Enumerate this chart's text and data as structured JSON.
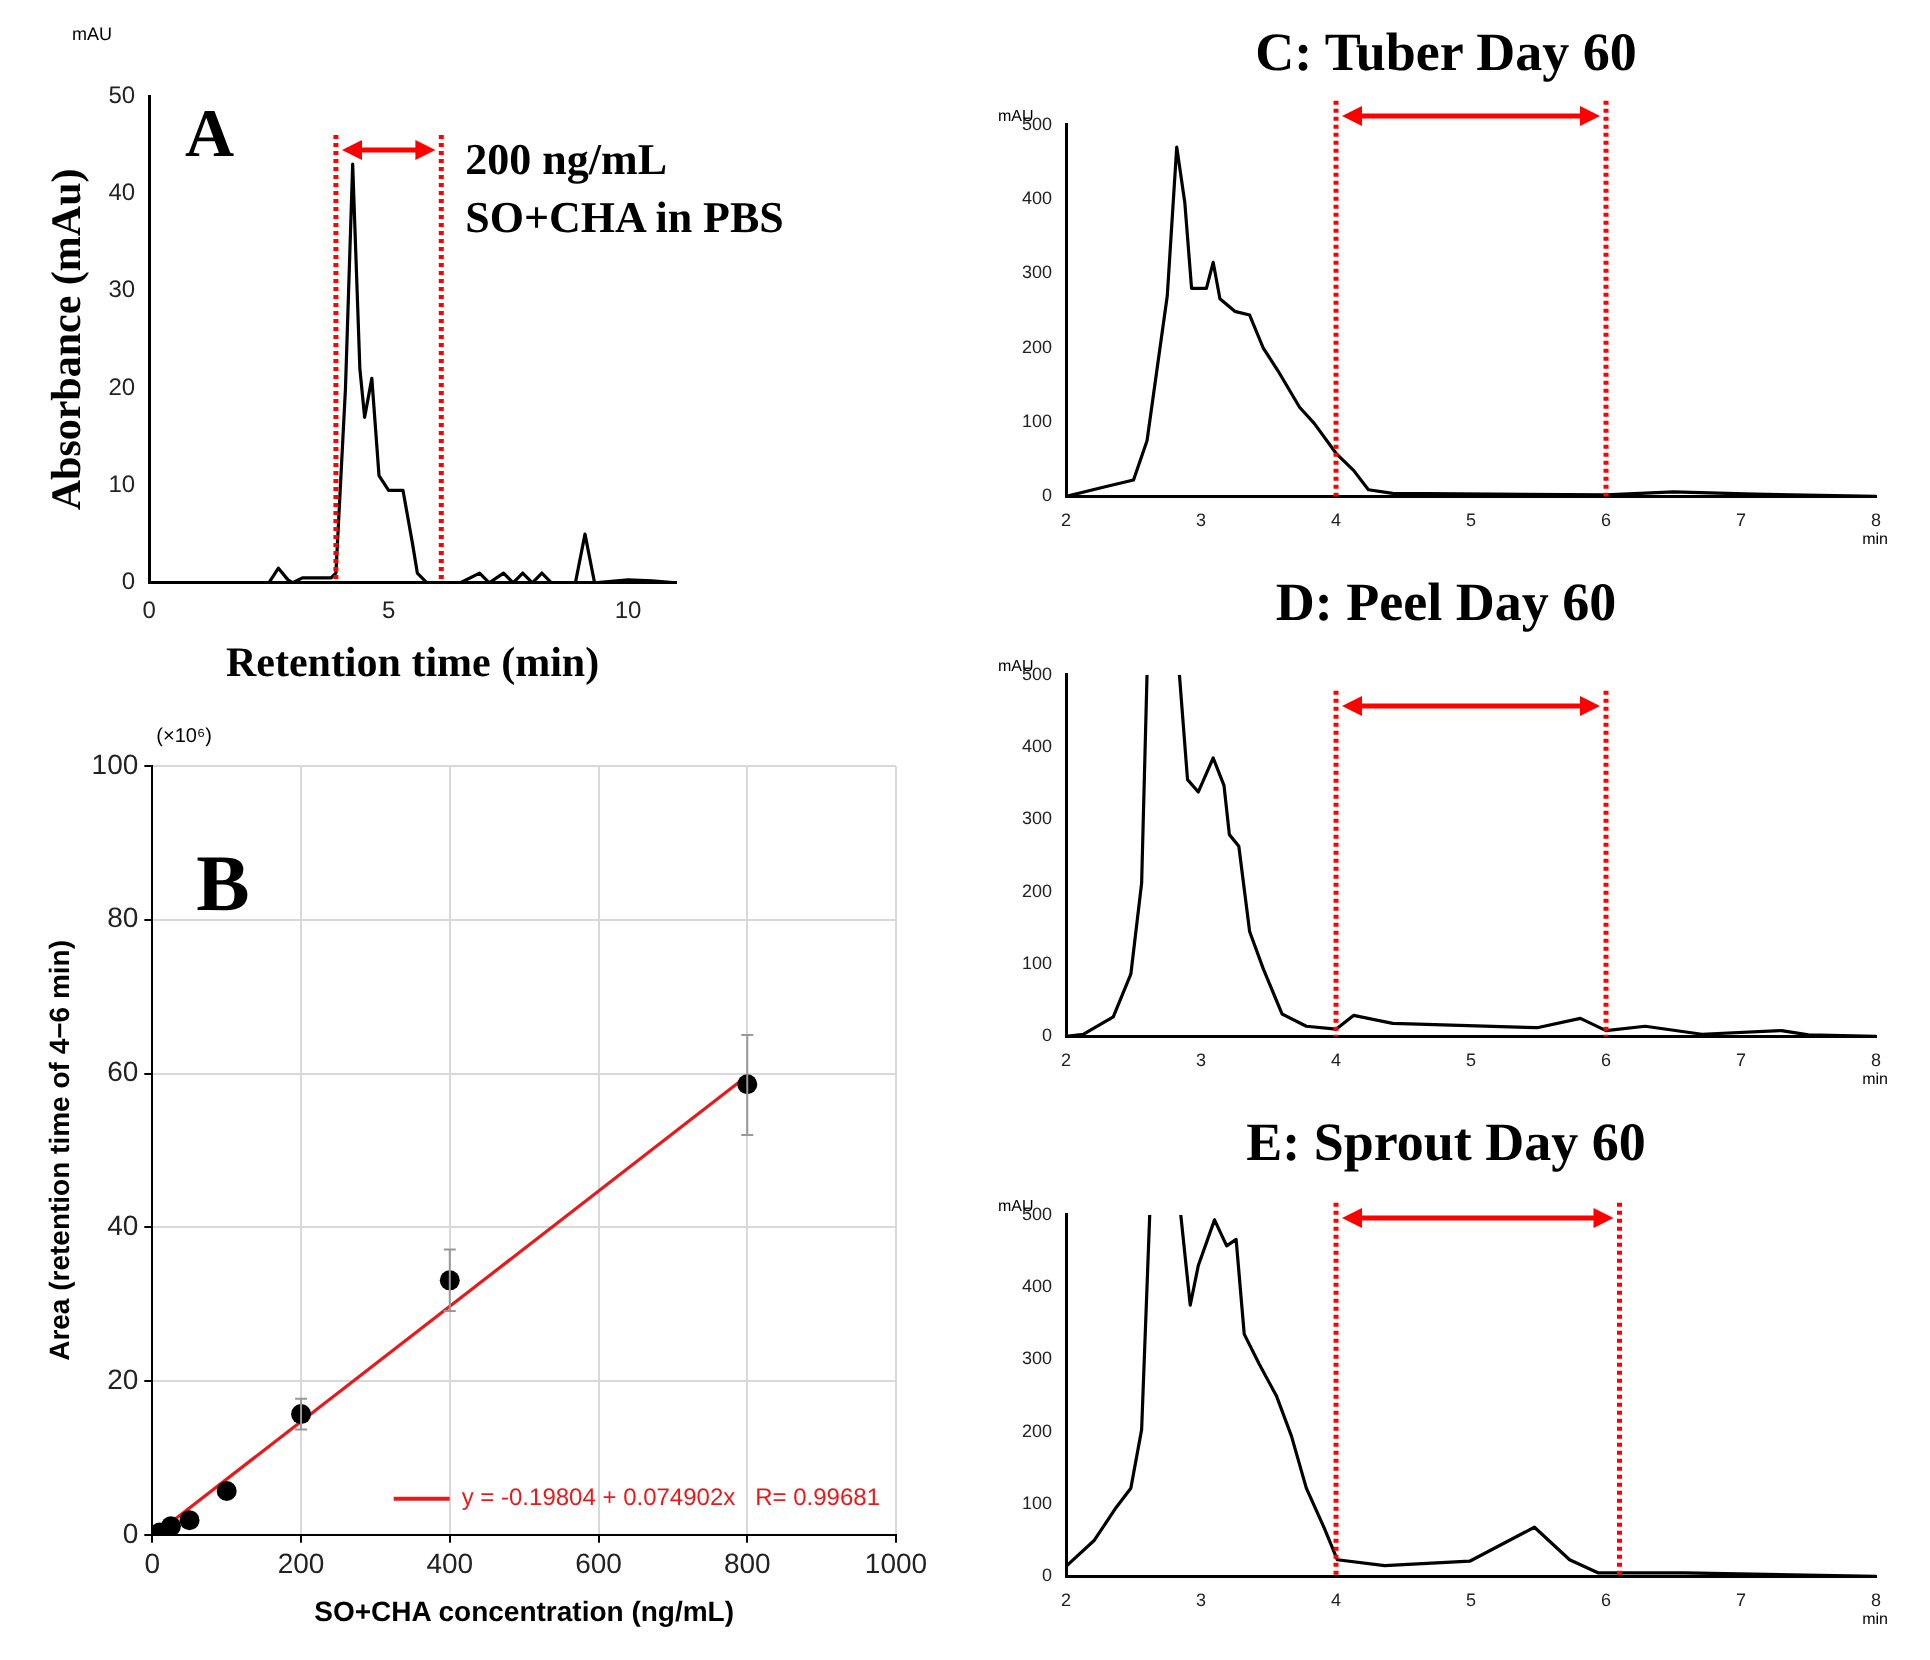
{
  "chart_data": [
    {
      "type": "line",
      "xlabel": "Retention time (min)",
      "ylabel": "Absorbance (mAu)",
      "annotations": [
        "A",
        {
          "text": "200 ng/mL",
          "x": 6.1,
          "y": 42
        },
        {
          "text": "SO+CHA in PBS",
          "x": 6.1,
          "y": 36
        },
        "mAU"
      ],
      "x": [
        0,
        2.5,
        2.7,
        2.9,
        3.0,
        3.2,
        3.8,
        3.9,
        4.1,
        4.25,
        4.4,
        4.5,
        4.65,
        4.8,
        5.0,
        5.3,
        5.5,
        5.6,
        5.8,
        6.5,
        6.9,
        7.1,
        7.4,
        7.6,
        7.8,
        8.0,
        8.2,
        8.4,
        8.9,
        9.1,
        9.3,
        10.0,
        10.5,
        11.0
      ],
      "series": [
        {
          "color": "#000000",
          "values": [
            0,
            0,
            1.5,
            0.3,
            0,
            0.5,
            0.5,
            1,
            20,
            43,
            22,
            17,
            21,
            11,
            9.5,
            9.5,
            4,
            1,
            0,
            0,
            1,
            0,
            1,
            0,
            1,
            0,
            1,
            0,
            0,
            5,
            0,
            0.3,
            0.2,
            0
          ]
        }
      ],
      "xlim": [
        0,
        11
      ],
      "xticks": [
        0,
        5,
        10
      ],
      "ylim": [
        0,
        50
      ],
      "yticks": [
        0,
        10,
        20,
        30,
        40,
        50
      ],
      "marker": "none",
      "ref_lines": [
        {
          "axis": "x",
          "value": 3.9,
          "color": "#ff0000",
          "line_style": "dotted"
        },
        {
          "axis": "x",
          "value": 6.1,
          "color": "#ff0000",
          "line_style": "dotted"
        }
      ]
    },
    {
      "type": "scatter",
      "xlabel": "SO+CHA concentration (ng/mL)",
      "ylabel": "Area (retention time of 4−6 min)",
      "annotations": [
        "B",
        "(×10⁶)"
      ],
      "series": [
        {
          "type": "scatter",
          "marker": "circle",
          "color": "#000000",
          "x": [
            10,
            25,
            50,
            100,
            200,
            400,
            800
          ],
          "values": [
            0.3,
            1.1,
            1.9,
            5.7,
            15.7,
            33.1,
            58.6
          ],
          "errors": [
            null,
            null,
            null,
            null,
            2,
            4,
            [
              52,
              65
            ]
          ]
        },
        {
          "type": "line",
          "marker": "none",
          "name": "y = -0.19804 + 0.074902x   R= 0.99681",
          "color": "#e8191b",
          "x": [
            30,
            800
          ],
          "values": [
            2.0,
            59.7
          ]
        }
      ],
      "xlim": [
        0,
        1000
      ],
      "xticks": [
        0,
        200,
        400,
        600,
        800,
        1000
      ],
      "ylim": [
        0,
        100
      ],
      "yticks": [
        0,
        20,
        40,
        60,
        80,
        100
      ],
      "grid": true,
      "legend": "bottom right"
    },
    {
      "type": "line",
      "title": "C: Tuber Day 60",
      "ylabel": "mAU",
      "xlabel": "min",
      "x": [
        2,
        2.29,
        2.5,
        2.6,
        2.75,
        2.82,
        2.88,
        2.93,
        3.04,
        3.09,
        3.14,
        3.25,
        3.36,
        3.46,
        3.57,
        3.73,
        3.84,
        4.0,
        4.13,
        4.24,
        4.42,
        6.0,
        6.5,
        7.1,
        8.0
      ],
      "series": [
        {
          "color": "#000000",
          "values": [
            0,
            13,
            22,
            75,
            270,
            470,
            395,
            280,
            280,
            315,
            266,
            249,
            244,
            200,
            169,
            120,
            98,
            58,
            35,
            9,
            4,
            2,
            6,
            3,
            0
          ]
        }
      ],
      "xlim": [
        2,
        8
      ],
      "xticks": [
        2,
        3,
        4,
        5,
        6,
        7,
        8
      ],
      "ylim": [
        0,
        500
      ],
      "yticks": [
        0,
        100,
        200,
        300,
        400,
        500
      ],
      "marker": "none",
      "ref_lines": [
        {
          "axis": "x",
          "value": 4,
          "color": "#ff0000",
          "line_style": "dotted"
        },
        {
          "axis": "x",
          "value": 6,
          "color": "#ff0000",
          "line_style": "dotted"
        }
      ]
    },
    {
      "type": "line",
      "title": "D: Peel Day 60",
      "ylabel": "mAU",
      "xlabel": "min",
      "x": [
        2,
        2.13,
        2.35,
        2.48,
        2.56,
        2.6,
        2.7,
        2.84,
        2.9,
        2.98,
        3.09,
        3.17,
        3.21,
        3.28,
        3.36,
        3.46,
        3.6,
        3.78,
        4.0,
        4.13,
        4.42,
        5.49,
        5.81,
        6.0,
        6.29,
        6.71,
        7.3,
        7.5,
        8.0
      ],
      "series": [
        {
          "color": "#000000",
          "values": [
            0,
            3,
            27,
            86,
            212,
            500,
            null,
            500,
            355,
            338,
            385,
            347,
            279,
            263,
            145,
            94,
            31,
            14,
            10,
            29,
            18,
            12,
            25,
            8,
            14,
            3,
            8,
            2,
            0
          ]
        }
      ],
      "xlim": [
        2,
        8
      ],
      "xticks": [
        2,
        3,
        4,
        5,
        6,
        7,
        8
      ],
      "ylim": [
        0,
        500
      ],
      "yticks": [
        0,
        100,
        200,
        300,
        400,
        500
      ],
      "marker": "none",
      "ref_lines": [
        {
          "axis": "x",
          "value": 4,
          "color": "#ff0000",
          "line_style": "dotted"
        },
        {
          "axis": "x",
          "value": 6,
          "color": "#ff0000",
          "line_style": "dotted"
        }
      ]
    },
    {
      "type": "line",
      "title": "E: Sprout Day 60",
      "ylabel": "mAU",
      "xlabel": "min",
      "x": [
        2,
        2.21,
        2.37,
        2.48,
        2.56,
        2.62,
        2.75,
        2.85,
        2.92,
        2.98,
        3.1,
        3.19,
        3.26,
        3.32,
        3.43,
        3.56,
        3.67,
        3.78,
        3.91,
        4.01,
        4.36,
        4.99,
        5.47,
        5.73,
        5.94,
        6.58,
        8.0
      ],
      "series": [
        {
          "color": "#000000",
          "values": [
            14,
            50,
            95,
            122,
            203,
            500,
            null,
            500,
            375,
            430,
            493,
            457,
            466,
            335,
            294,
            249,
            194,
            122,
            68,
            23,
            15,
            21,
            68,
            23,
            5,
            5,
            0
          ]
        }
      ],
      "xlim": [
        2,
        8
      ],
      "xticks": [
        2,
        3,
        4,
        5,
        6,
        7,
        8
      ],
      "ylim": [
        0,
        500
      ],
      "yticks": [
        0,
        100,
        200,
        300,
        400,
        500
      ],
      "marker": "none",
      "ref_lines": [
        {
          "axis": "x",
          "value": 4,
          "color": "#ff0000",
          "line_style": "dotted"
        },
        {
          "axis": "x",
          "value": 6.1,
          "color": "#ff0000",
          "line_style": "dotted"
        }
      ]
    }
  ]
}
